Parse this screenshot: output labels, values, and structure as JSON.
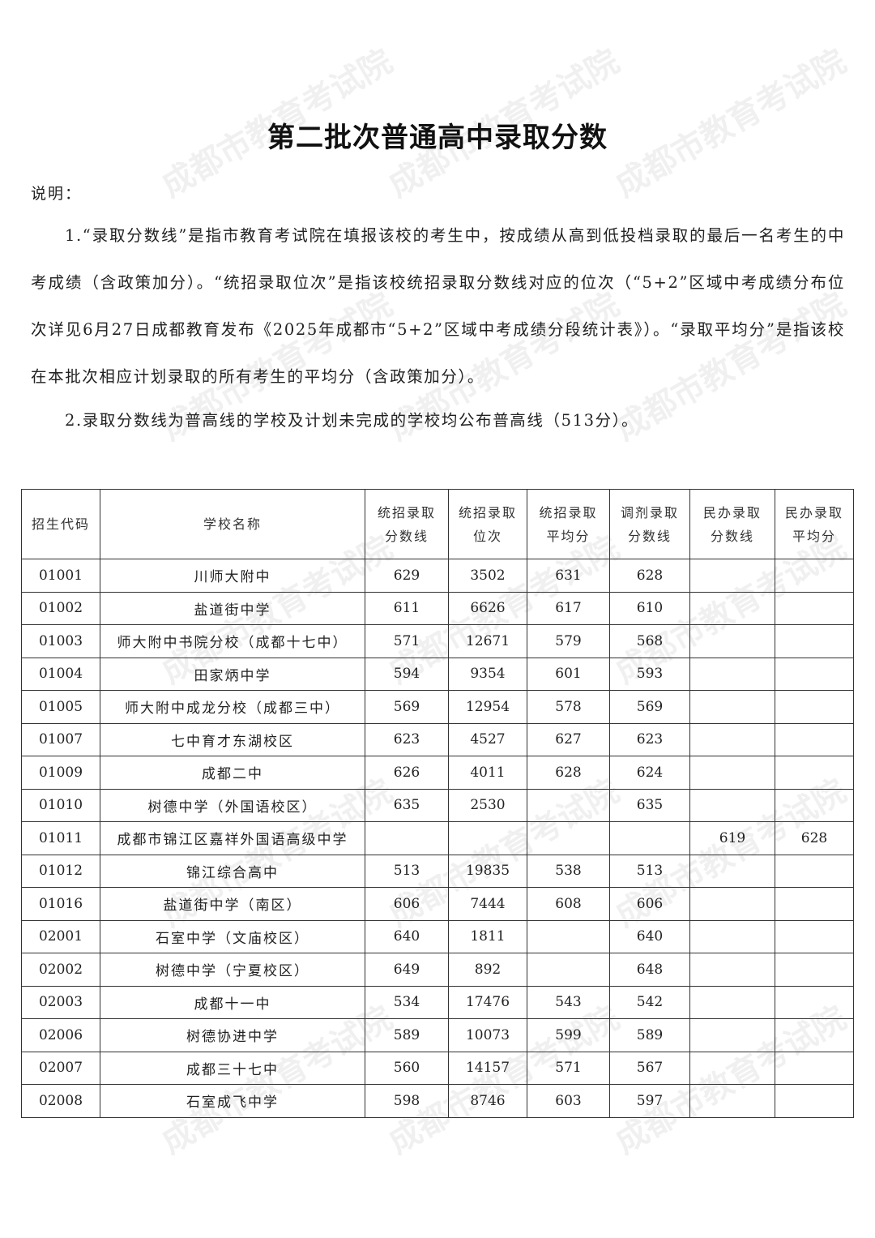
{
  "watermark": "成都市教育考试院",
  "title": "第二批次普通高中录取分数",
  "note_label": "说明：",
  "notes": [
    "1.“录取分数线”是指市教育考试院在填报该校的考生中，按成绩从高到低投档录取的最后一名考生的中考成绩（含政策加分）。“统招录取位次”是指该校统招录取分数线对应的位次（“5+2”区域中考成绩分布位次详见6月27日成都教育发布《2025年成都市“5+2”区域中考成绩分段统计表》）。“录取平均分”是指该校在本批次相应计划录取的所有考生的平均分（含政策加分）。",
    "2.录取分数线为普高线的学校及计划未完成的学校均公布普高线（513分）。"
  ],
  "table": {
    "headers": [
      [
        "招生代码"
      ],
      [
        "学校名称"
      ],
      [
        "统招录取",
        "分数线"
      ],
      [
        "统招录取",
        "位次"
      ],
      [
        "统招录取",
        "平均分"
      ],
      [
        "调剂录取",
        "分数线"
      ],
      [
        "民办录取",
        "分数线"
      ],
      [
        "民办录取",
        "平均分"
      ]
    ],
    "rows": [
      [
        "01001",
        "川师大附中",
        "629",
        "3502",
        "631",
        "628",
        "",
        ""
      ],
      [
        "01002",
        "盐道街中学",
        "611",
        "6626",
        "617",
        "610",
        "",
        ""
      ],
      [
        "01003",
        "师大附中书院分校（成都十七中）",
        "571",
        "12671",
        "579",
        "568",
        "",
        ""
      ],
      [
        "01004",
        "田家炳中学",
        "594",
        "9354",
        "601",
        "593",
        "",
        ""
      ],
      [
        "01005",
        "师大附中成龙分校（成都三中）",
        "569",
        "12954",
        "578",
        "569",
        "",
        ""
      ],
      [
        "01007",
        "七中育才东湖校区",
        "623",
        "4527",
        "627",
        "623",
        "",
        ""
      ],
      [
        "01009",
        "成都二中",
        "626",
        "4011",
        "628",
        "624",
        "",
        ""
      ],
      [
        "01010",
        "树德中学（外国语校区）",
        "635",
        "2530",
        "",
        "635",
        "",
        ""
      ],
      [
        "01011",
        "成都市锦江区嘉祥外国语高级中学",
        "",
        "",
        "",
        "",
        "619",
        "628"
      ],
      [
        "01012",
        "锦江综合高中",
        "513",
        "19835",
        "538",
        "513",
        "",
        ""
      ],
      [
        "01016",
        "盐道街中学（南区）",
        "606",
        "7444",
        "608",
        "606",
        "",
        ""
      ],
      [
        "02001",
        "石室中学（文庙校区）",
        "640",
        "1811",
        "",
        "640",
        "",
        ""
      ],
      [
        "02002",
        "树德中学（宁夏校区）",
        "649",
        "892",
        "",
        "648",
        "",
        ""
      ],
      [
        "02003",
        "成都十一中",
        "534",
        "17476",
        "543",
        "542",
        "",
        ""
      ],
      [
        "02006",
        "树德协进中学",
        "589",
        "10073",
        "599",
        "589",
        "",
        ""
      ],
      [
        "02007",
        "成都三十七中",
        "560",
        "14157",
        "571",
        "567",
        "",
        ""
      ],
      [
        "02008",
        "石室成飞中学",
        "598",
        "8746",
        "603",
        "597",
        "",
        ""
      ]
    ]
  }
}
